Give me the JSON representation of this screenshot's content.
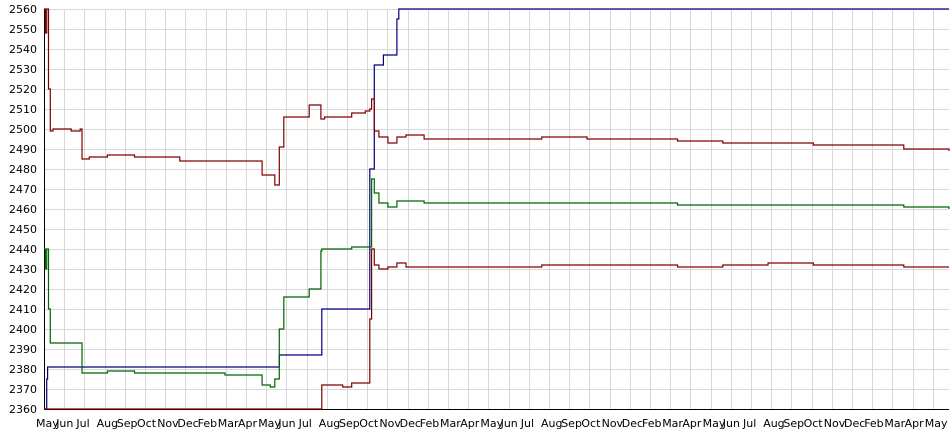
{
  "chart_data": {
    "type": "line",
    "title": "",
    "xlabel": "",
    "ylabel": "",
    "ylim": [
      2360,
      2560
    ],
    "y_ticks": [
      2360,
      2370,
      2380,
      2390,
      2400,
      2410,
      2420,
      2430,
      2440,
      2450,
      2460,
      2470,
      2480,
      2490,
      2500,
      2510,
      2520,
      2530,
      2540,
      2550,
      2560
    ],
    "x_range": [
      0,
      100
    ],
    "x_tick_labels": [
      "May",
      "Jun",
      "Jul",
      "Aug",
      "Sep",
      "Oct",
      "Nov",
      "Dec",
      "Feb",
      "Mar",
      "Apr"
    ],
    "grid": {
      "horizontal": true,
      "vertical": true
    },
    "legend": "none",
    "series": [
      {
        "color": "#000080",
        "x": [
          0.0,
          0.3,
          0.4,
          3.0,
          25.9,
          26.0,
          30.6,
          30.7,
          33.5,
          33.6,
          35.8,
          36.0,
          36.5,
          37.5,
          38.5,
          39.0,
          39.2,
          100.0
        ],
        "y": [
          2360,
          2375,
          2381,
          2381,
          2381,
          2387,
          2387,
          2410,
          2410,
          2410,
          2410,
          2480,
          2532,
          2537,
          2537,
          2555,
          2560,
          2560
        ]
      },
      {
        "color": "#800000",
        "x": [
          0.0,
          0.15,
          0.3,
          0.5,
          0.7,
          1.0,
          3.0,
          4.0,
          4.2,
          5.0,
          7.0,
          10.0,
          15.0,
          20.0,
          24.0,
          24.1,
          25.0,
          25.5,
          26.0,
          26.5,
          29.0,
          29.3,
          30.6,
          30.7,
          31.0,
          33.0,
          34.0,
          35.5,
          36.0,
          36.2,
          36.5,
          37.0,
          38.0,
          39.0,
          40.0,
          42.0,
          45.0,
          50.0,
          55.0,
          60.0,
          65.0,
          70.0,
          75.0,
          80.0,
          85.0,
          90.0,
          95.0,
          100.0
        ],
        "y": [
          2560,
          2548,
          2560,
          2520,
          2499,
          2500,
          2499,
          2500,
          2485,
          2486,
          2487,
          2486,
          2484,
          2484,
          2484,
          2477,
          2477,
          2472,
          2491,
          2506,
          2506,
          2512,
          2505,
          2505,
          2506,
          2506,
          2508,
          2509,
          2510,
          2515,
          2499,
          2496,
          2493,
          2496,
          2497,
          2495,
          2495,
          2495,
          2496,
          2495,
          2495,
          2494,
          2493,
          2493,
          2492,
          2492,
          2490,
          2489
        ]
      },
      {
        "color": "#006400",
        "x": [
          0.0,
          0.15,
          0.3,
          0.5,
          0.7,
          1.0,
          3.0,
          4.0,
          4.2,
          5.0,
          7.0,
          10.0,
          15.0,
          20.0,
          24.0,
          24.1,
          25.0,
          25.5,
          26.0,
          26.5,
          29.0,
          29.3,
          30.6,
          30.7,
          31.0,
          33.0,
          34.0,
          35.5,
          36.0,
          36.2,
          36.5,
          37.0,
          38.0,
          39.0,
          40.0,
          42.0,
          45.0,
          50.0,
          55.0,
          60.0,
          65.0,
          70.0,
          75.0,
          80.0,
          85.0,
          90.0,
          95.0,
          100.0
        ],
        "y": [
          2440,
          2430,
          2440,
          2410,
          2393,
          2393,
          2393,
          2393,
          2378,
          2378,
          2379,
          2378,
          2378,
          2377,
          2377,
          2372,
          2371,
          2375,
          2400,
          2416,
          2416,
          2420,
          2439,
          2440,
          2440,
          2440,
          2441,
          2441,
          2441,
          2475,
          2468,
          2463,
          2461,
          2464,
          2464,
          2463,
          2463,
          2463,
          2463,
          2463,
          2463,
          2462,
          2462,
          2462,
          2462,
          2462,
          2461,
          2460
        ]
      },
      {
        "color": "#800000",
        "x": [
          0.0,
          26.0,
          30.6,
          30.7,
          31.0,
          33.0,
          34.0,
          35.5,
          35.8,
          36.0,
          36.2,
          36.5,
          37.0,
          38.0,
          39.0,
          40.0,
          42.0,
          45.0,
          50.0,
          55.0,
          60.0,
          65.0,
          70.0,
          75.0,
          80.0,
          85.0,
          90.0,
          95.0,
          100.0
        ],
        "y": [
          2360,
          2360,
          2360,
          2372,
          2372,
          2371,
          2373,
          2373,
          2373,
          2405,
          2440,
          2432,
          2430,
          2431,
          2433,
          2431,
          2431,
          2431,
          2431,
          2432,
          2432,
          2432,
          2431,
          2432,
          2433,
          2432,
          2432,
          2431,
          2431
        ]
      }
    ]
  }
}
